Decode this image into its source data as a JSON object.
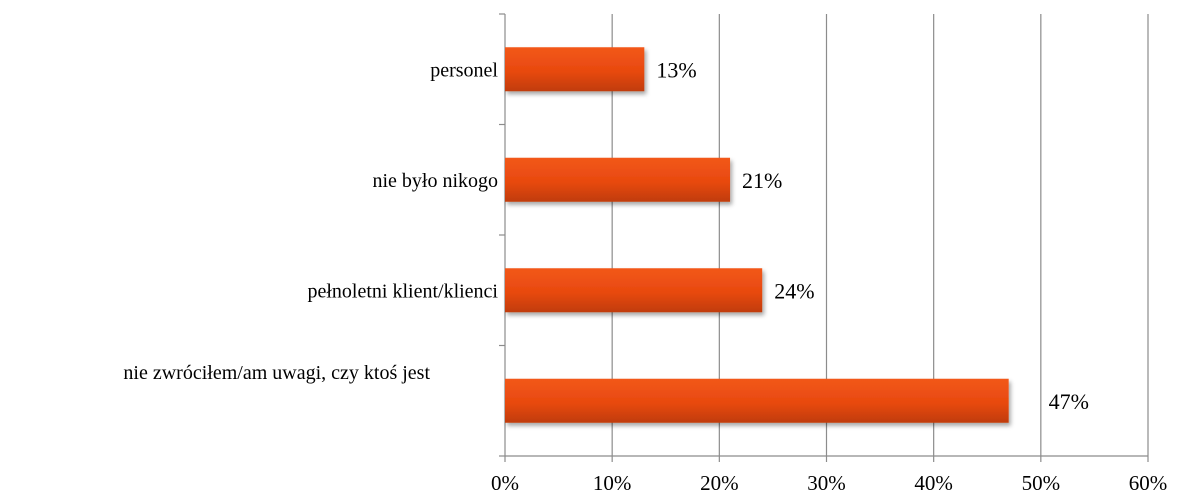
{
  "chart_data": {
    "type": "bar",
    "orientation": "horizontal",
    "categories": [
      "personel",
      "nie było nikogo",
      "pełnoletni klient/klienci",
      "nie zwróciłem/am uwagi, czy ktoś jest"
    ],
    "values": [
      13,
      21,
      24,
      47
    ],
    "value_labels": [
      "13%",
      "21%",
      "24%",
      "47%"
    ],
    "xlim": [
      0,
      60
    ],
    "x_ticks": [
      0,
      10,
      20,
      30,
      40,
      50,
      60
    ],
    "x_tick_labels": [
      "0%",
      "10%",
      "20%",
      "30%",
      "40%",
      "50%",
      "60%"
    ],
    "grid": true,
    "legend": "none",
    "bar_color": "#e8490f",
    "bar_color_dark": "#b8380a"
  }
}
